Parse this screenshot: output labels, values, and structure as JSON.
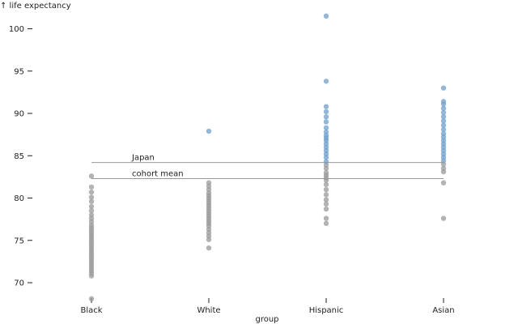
{
  "chart_data": {
    "type": "scatter",
    "title": "",
    "ylabel": "↑ life expectancy",
    "xlabel": "group",
    "categories": [
      "Black",
      "White",
      "Hispanic",
      "Asian"
    ],
    "ylim": [
      68,
      102
    ],
    "yticks": [
      70,
      75,
      80,
      85,
      90,
      95,
      100
    ],
    "reference_lines": [
      {
        "label": "Japan",
        "value": 84.2
      },
      {
        "label": "cohort mean",
        "value": 82.3
      }
    ],
    "colors": {
      "below_japan": "#9a9a9a",
      "above_japan": "#6f9fcc",
      "reference_line": "#999999"
    },
    "series": [
      {
        "category": "Black",
        "values": [
          82.6,
          81.3,
          80.7,
          80.1,
          79.6,
          79.0,
          78.5,
          78.0,
          77.6,
          77.2,
          76.8,
          76.5,
          76.2,
          75.9,
          75.6,
          75.3,
          75.0,
          74.7,
          74.4,
          74.1,
          73.8,
          73.5,
          73.2,
          72.9,
          72.6,
          72.3,
          72.0,
          71.7,
          71.4,
          71.1,
          70.8,
          68.1
        ]
      },
      {
        "category": "White",
        "values": [
          87.9,
          81.8,
          81.4,
          81.0,
          80.6,
          80.3,
          80.0,
          79.7,
          79.4,
          79.1,
          78.8,
          78.5,
          78.2,
          77.9,
          77.6,
          77.3,
          77.0,
          76.7,
          76.3,
          75.9,
          75.5,
          75.1,
          74.1
        ]
      },
      {
        "category": "Hispanic",
        "values": [
          101.5,
          93.8,
          90.8,
          90.2,
          89.6,
          89.0,
          88.3,
          87.8,
          87.4,
          87.1,
          86.8,
          86.4,
          86.0,
          85.6,
          85.2,
          84.8,
          84.3,
          83.9,
          83.5,
          83.0,
          82.7,
          82.4,
          82.1,
          81.6,
          81.0,
          80.4,
          79.8,
          79.3,
          78.7,
          77.6,
          77.0
        ]
      },
      {
        "category": "Asian",
        "values": [
          93.0,
          91.4,
          91.1,
          90.6,
          90.1,
          89.6,
          89.1,
          88.6,
          88.1,
          87.6,
          87.2,
          86.8,
          86.4,
          86.0,
          85.6,
          85.2,
          84.8,
          84.4,
          84.0,
          83.5,
          83.1,
          81.8,
          77.6
        ]
      }
    ]
  }
}
